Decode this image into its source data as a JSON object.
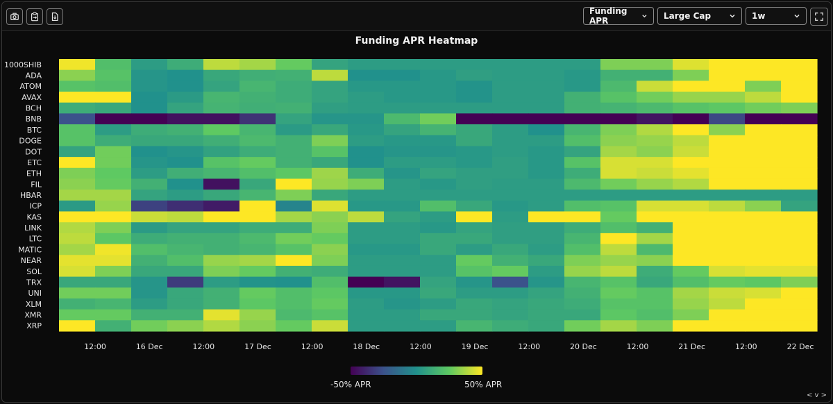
{
  "toolbar": {
    "buttons": [
      {
        "name": "camera-icon"
      },
      {
        "name": "clipboard-icon"
      },
      {
        "name": "file-download-icon"
      }
    ],
    "selects": {
      "metric": "Funding APR",
      "cap": "Large Cap",
      "period": "1w"
    },
    "fullscreen": "expand-icon"
  },
  "chart_data": {
    "type": "heatmap",
    "title": "Funding APR Heatmap",
    "y": [
      "1000SHIB",
      "ADA",
      "ATOM",
      "AVAX",
      "BCH",
      "BNB",
      "BTC",
      "DOGE",
      "DOT",
      "ETC",
      "ETH",
      "FIL",
      "HBAR",
      "ICP",
      "KAS",
      "LINK",
      "LTC",
      "MATIC",
      "NEAR",
      "SOL",
      "TRX",
      "UNI",
      "XLM",
      "XMR",
      "XRP"
    ],
    "x_ticks": [
      "12:00",
      "16 Dec",
      "12:00",
      "17 Dec",
      "12:00",
      "18 Dec",
      "12:00",
      "19 Dec",
      "12:00",
      "20 Dec",
      "12:00",
      "21 Dec",
      "12:00",
      "22 Dec"
    ],
    "value_range": [
      -50,
      50
    ],
    "colorscale": "viridis",
    "colorbar": {
      "min_label": "-50% APR",
      "max_label": "50% APR"
    },
    "values": [
      [
        48,
        20,
        5,
        12,
        40,
        36,
        26,
        8,
        5,
        5,
        5,
        5,
        5,
        5,
        5,
        30,
        30,
        45,
        50,
        50,
        50
      ],
      [
        32,
        22,
        2,
        0,
        10,
        13,
        14,
        40,
        0,
        0,
        3,
        6,
        5,
        5,
        3,
        14,
        14,
        30,
        50,
        50,
        50
      ],
      [
        22,
        20,
        2,
        0,
        8,
        16,
        12,
        8,
        3,
        3,
        3,
        1,
        5,
        5,
        3,
        18,
        42,
        50,
        50,
        30,
        50
      ],
      [
        50,
        50,
        0,
        4,
        16,
        14,
        12,
        8,
        5,
        3,
        3,
        1,
        5,
        5,
        14,
        22,
        28,
        34,
        34,
        40,
        50
      ],
      [
        12,
        10,
        0,
        8,
        15,
        13,
        14,
        6,
        5,
        5,
        5,
        5,
        5,
        5,
        14,
        15,
        18,
        22,
        24,
        28,
        30
      ],
      [
        -25,
        -50,
        -50,
        -45,
        -45,
        -35,
        8,
        2,
        2,
        18,
        28,
        -50,
        -50,
        -50,
        -50,
        -50,
        -44,
        -50,
        -28,
        -50,
        -50
      ],
      [
        22,
        5,
        12,
        14,
        25,
        16,
        4,
        10,
        3,
        8,
        15,
        10,
        5,
        0,
        16,
        30,
        38,
        50,
        32,
        50,
        50
      ],
      [
        22,
        12,
        10,
        10,
        13,
        18,
        14,
        30,
        5,
        3,
        3,
        10,
        5,
        5,
        20,
        32,
        34,
        40,
        50,
        50,
        50
      ],
      [
        8,
        28,
        0,
        2,
        7,
        12,
        14,
        22,
        0,
        2,
        2,
        3,
        5,
        3,
        8,
        36,
        32,
        42,
        50,
        50,
        50
      ],
      [
        50,
        28,
        2,
        0,
        22,
        26,
        14,
        10,
        0,
        5,
        5,
        3,
        6,
        3,
        22,
        44,
        44,
        50,
        50,
        50,
        50
      ],
      [
        30,
        25,
        5,
        13,
        16,
        20,
        24,
        35,
        12,
        2,
        8,
        6,
        6,
        3,
        12,
        44,
        42,
        46,
        50,
        50,
        50
      ],
      [
        32,
        26,
        14,
        0,
        -45,
        10,
        50,
        34,
        30,
        5,
        3,
        6,
        5,
        5,
        18,
        28,
        34,
        38,
        50,
        50,
        50
      ],
      [
        36,
        36,
        8,
        5,
        10,
        16,
        30,
        10,
        5,
        5,
        5,
        5,
        5,
        5,
        5,
        5,
        5,
        5,
        5,
        5,
        5
      ],
      [
        4,
        34,
        -30,
        -36,
        -42,
        50,
        -5,
        45,
        3,
        3,
        20,
        10,
        3,
        5,
        20,
        22,
        44,
        44,
        40,
        32,
        8
      ],
      [
        50,
        50,
        42,
        40,
        50,
        50,
        36,
        32,
        40,
        8,
        5,
        50,
        5,
        50,
        50,
        26,
        50,
        50,
        50,
        50,
        50
      ],
      [
        38,
        30,
        4,
        8,
        8,
        12,
        12,
        30,
        5,
        5,
        3,
        8,
        6,
        6,
        12,
        20,
        14,
        50,
        50,
        50,
        50
      ],
      [
        40,
        24,
        12,
        14,
        14,
        18,
        28,
        26,
        5,
        5,
        10,
        10,
        6,
        6,
        16,
        50,
        36,
        50,
        50,
        50,
        50
      ],
      [
        36,
        48,
        20,
        16,
        14,
        16,
        22,
        32,
        3,
        3,
        10,
        5,
        10,
        5,
        20,
        40,
        18,
        50,
        50,
        50,
        50
      ],
      [
        46,
        46,
        14,
        20,
        34,
        36,
        50,
        30,
        5,
        5,
        5,
        26,
        14,
        10,
        30,
        34,
        32,
        50,
        50,
        50,
        50
      ],
      [
        44,
        30,
        10,
        10,
        30,
        26,
        14,
        12,
        5,
        5,
        5,
        22,
        26,
        5,
        34,
        40,
        12,
        26,
        44,
        46,
        46
      ],
      [
        10,
        10,
        2,
        -32,
        5,
        1,
        0,
        20,
        -50,
        -44,
        8,
        2,
        -25,
        2,
        16,
        22,
        10,
        20,
        26,
        24,
        30
      ],
      [
        28,
        28,
        2,
        10,
        14,
        26,
        20,
        24,
        3,
        3,
        10,
        5,
        5,
        8,
        14,
        26,
        22,
        36,
        42,
        44,
        50
      ],
      [
        14,
        16,
        5,
        10,
        14,
        24,
        20,
        26,
        5,
        2,
        5,
        10,
        8,
        10,
        12,
        22,
        22,
        34,
        40,
        50,
        50
      ],
      [
        26,
        26,
        14,
        14,
        46,
        34,
        18,
        22,
        5,
        5,
        10,
        10,
        8,
        10,
        10,
        24,
        20,
        30,
        50,
        50,
        50
      ],
      [
        50,
        14,
        28,
        32,
        38,
        32,
        26,
        42,
        5,
        5,
        5,
        16,
        12,
        10,
        28,
        36,
        30,
        50,
        50,
        50,
        50
      ]
    ]
  }
}
